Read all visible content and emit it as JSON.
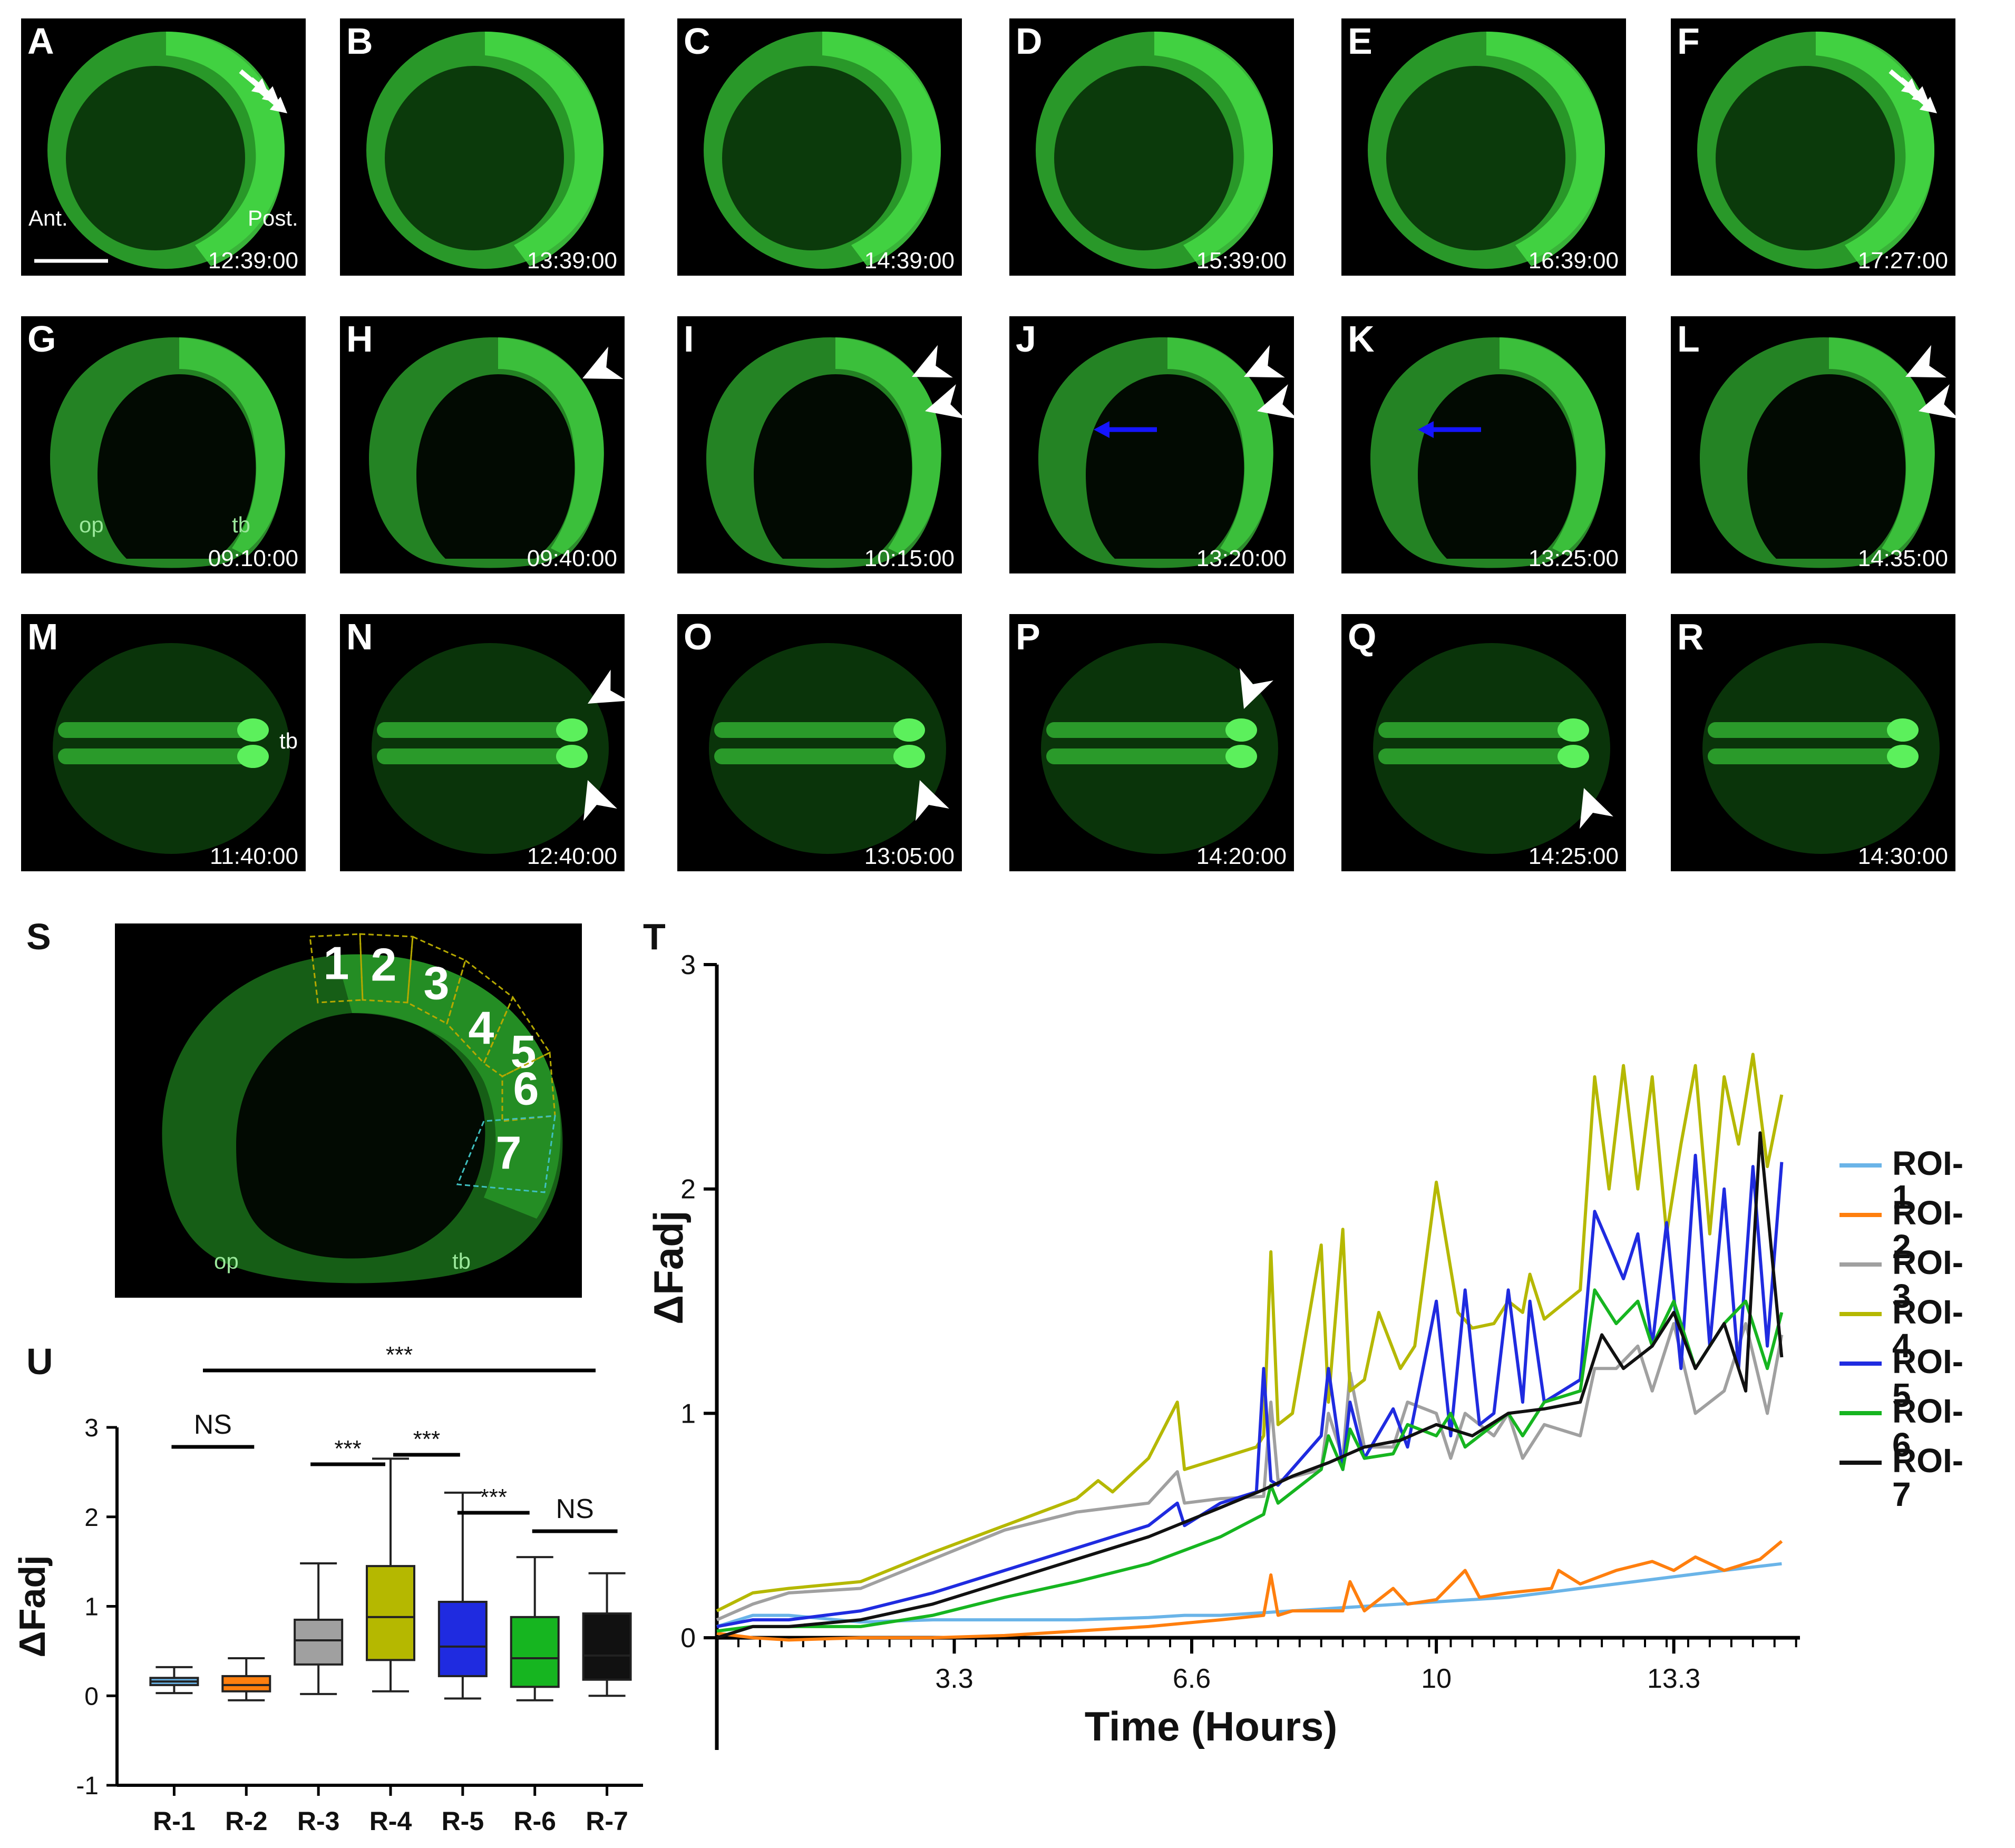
{
  "rows": [
    {
      "panels": [
        {
          "letter": "A",
          "time": "12:39:00",
          "annotations": [
            {
              "text": "Ant.",
              "pos": "bl"
            },
            {
              "text": "Post.",
              "pos": "br"
            }
          ],
          "marks": "white-arrows",
          "scalebar": true,
          "shape": "ring"
        },
        {
          "letter": "B",
          "time": "13:39:00",
          "shape": "ring"
        },
        {
          "letter": "C",
          "time": "14:39:00",
          "shape": "ring"
        },
        {
          "letter": "D",
          "time": "15:39:00",
          "shape": "ring"
        },
        {
          "letter": "E",
          "time": "16:39:00",
          "shape": "ring"
        },
        {
          "letter": "F",
          "time": "17:27:00",
          "marks": "white-arrows",
          "shape": "ring"
        }
      ]
    },
    {
      "panels": [
        {
          "letter": "G",
          "time": "09:10:00",
          "annotations": [
            {
              "text": "op",
              "pos": "bl2"
            },
            {
              "text": "tb",
              "pos": "bc"
            }
          ],
          "shape": "horseshoe"
        },
        {
          "letter": "H",
          "time": "09:40:00",
          "marks": "arrowhead-1",
          "shape": "horseshoe"
        },
        {
          "letter": "I",
          "time": "10:15:00",
          "marks": "arrowhead-2",
          "shape": "horseshoe"
        },
        {
          "letter": "J",
          "time": "13:20:00",
          "marks": "arrowhead-2-blue",
          "shape": "horseshoe"
        },
        {
          "letter": "K",
          "time": "13:25:00",
          "marks": "blue-arrow",
          "shape": "horseshoe"
        },
        {
          "letter": "L",
          "time": "14:35:00",
          "marks": "arrowhead-2",
          "shape": "horseshoe"
        }
      ]
    },
    {
      "panels": [
        {
          "letter": "M",
          "time": "11:40:00",
          "annotations": [
            {
              "text": "tb",
              "pos": "r"
            }
          ],
          "shape": "dorsal"
        },
        {
          "letter": "N",
          "time": "12:40:00",
          "marks": "arrowhead-updown",
          "shape": "dorsal"
        },
        {
          "letter": "O",
          "time": "13:05:00",
          "marks": "arrowhead-up",
          "shape": "dorsal"
        },
        {
          "letter": "P",
          "time": "14:20:00",
          "marks": "arrowhead-down",
          "shape": "dorsal"
        },
        {
          "letter": "Q",
          "time": "14:25:00",
          "marks": "arrowhead-up2",
          "shape": "dorsal"
        },
        {
          "letter": "R",
          "time": "14:30:00",
          "shape": "dorsal"
        }
      ]
    }
  ],
  "panel_s": {
    "letter": "S",
    "labels": [
      "op",
      "tb"
    ],
    "rois": [
      "1",
      "2",
      "3",
      "4",
      "5",
      "6",
      "7"
    ]
  },
  "chart_data": [
    {
      "type": "line",
      "panel": "T",
      "xlabel": "Time (Hours)",
      "ylabel": "ΔFadj",
      "ylim": [
        -0.5,
        3
      ],
      "xlim": [
        0,
        15.2
      ],
      "xticks": [
        3.3,
        6.6,
        10,
        13.3
      ],
      "xtick_labels": [
        "3.3",
        "6.6",
        "10",
        "13.3"
      ],
      "yticks": [
        0,
        1,
        2,
        3
      ],
      "legend_position": "right",
      "series": [
        {
          "name": "ROI-1",
          "color": "#6ab4e8",
          "x": [
            0,
            0.5,
            1,
            2,
            3,
            4,
            5,
            6,
            6.5,
            7,
            8,
            9,
            10,
            11,
            12,
            13,
            14,
            14.8
          ],
          "y": [
            0.05,
            0.1,
            0.1,
            0.07,
            0.08,
            0.08,
            0.08,
            0.09,
            0.1,
            0.1,
            0.12,
            0.14,
            0.16,
            0.18,
            0.22,
            0.26,
            0.3,
            0.33
          ]
        },
        {
          "name": "ROI-2",
          "color": "#ff7f0e",
          "x": [
            0,
            0.5,
            1,
            2,
            3,
            4,
            5,
            6,
            7,
            7.6,
            7.7,
            7.8,
            8,
            8.7,
            8.8,
            9,
            9.4,
            9.6,
            10,
            10.4,
            10.6,
            11,
            11.6,
            11.7,
            12,
            12.5,
            13,
            13.3,
            13.6,
            14,
            14.5,
            14.8
          ],
          "y": [
            0.02,
            0.0,
            -0.01,
            0.0,
            0.0,
            0.01,
            0.03,
            0.05,
            0.08,
            0.1,
            0.28,
            0.1,
            0.12,
            0.12,
            0.25,
            0.12,
            0.22,
            0.15,
            0.17,
            0.3,
            0.18,
            0.2,
            0.22,
            0.3,
            0.24,
            0.3,
            0.34,
            0.3,
            0.36,
            0.3,
            0.35,
            0.43
          ]
        },
        {
          "name": "ROI-3",
          "color": "#a0a0a0",
          "x": [
            0,
            0.5,
            1,
            2,
            3,
            4,
            5,
            6,
            6.4,
            6.5,
            7,
            7.6,
            7.7,
            7.8,
            8.4,
            8.5,
            8.7,
            8.8,
            9,
            9.4,
            9.6,
            10,
            10.2,
            10.4,
            10.8,
            11,
            11.2,
            11.5,
            12,
            12.2,
            12.5,
            12.8,
            13,
            13.3,
            13.6,
            14,
            14.3,
            14.6,
            14.8
          ],
          "y": [
            0.08,
            0.15,
            0.2,
            0.22,
            0.35,
            0.48,
            0.56,
            0.6,
            0.74,
            0.6,
            0.62,
            0.63,
            1.05,
            0.7,
            0.75,
            1.0,
            0.8,
            1.18,
            0.85,
            0.85,
            1.05,
            1.0,
            0.8,
            1.0,
            0.9,
            1.0,
            0.8,
            0.95,
            0.9,
            1.2,
            1.2,
            1.3,
            1.1,
            1.4,
            1.0,
            1.1,
            1.4,
            1.0,
            1.35
          ]
        },
        {
          "name": "ROI-4",
          "color": "#b5b800",
          "x": [
            0,
            0.5,
            1,
            2,
            3,
            4,
            5,
            5.3,
            5.5,
            6,
            6.4,
            6.5,
            7,
            7.5,
            7.6,
            7.7,
            7.8,
            8,
            8.4,
            8.5,
            8.7,
            8.8,
            9,
            9.2,
            9.5,
            9.7,
            10,
            10.3,
            10.5,
            10.8,
            11,
            11.2,
            11.3,
            11.5,
            12,
            12.2,
            12.4,
            12.6,
            12.8,
            13,
            13.2,
            13.4,
            13.6,
            13.8,
            14,
            14.2,
            14.4,
            14.6,
            14.8
          ],
          "y": [
            0.12,
            0.2,
            0.22,
            0.25,
            0.38,
            0.5,
            0.62,
            0.7,
            0.65,
            0.8,
            1.05,
            0.75,
            0.8,
            0.85,
            0.9,
            1.72,
            0.95,
            1.0,
            1.75,
            1.05,
            1.82,
            1.1,
            1.15,
            1.45,
            1.2,
            1.3,
            2.03,
            1.45,
            1.38,
            1.4,
            1.5,
            1.45,
            1.62,
            1.42,
            1.55,
            2.5,
            2.0,
            2.55,
            2.0,
            2.5,
            1.8,
            2.2,
            2.55,
            1.8,
            2.5,
            2.2,
            2.6,
            2.1,
            2.42
          ]
        },
        {
          "name": "ROI-5",
          "color": "#1f2be0",
          "x": [
            0,
            0.5,
            1,
            2,
            3,
            4,
            5,
            6,
            6.4,
            6.5,
            7,
            7.5,
            7.6,
            7.7,
            7.8,
            8.4,
            8.5,
            8.7,
            8.8,
            9,
            9.4,
            9.6,
            10,
            10.2,
            10.4,
            10.6,
            10.8,
            11,
            11.2,
            11.3,
            11.5,
            12,
            12.2,
            12.4,
            12.6,
            12.8,
            13,
            13.2,
            13.4,
            13.6,
            13.8,
            14,
            14.2,
            14.4,
            14.6,
            14.8
          ],
          "y": [
            0.05,
            0.08,
            0.08,
            0.12,
            0.2,
            0.3,
            0.4,
            0.5,
            0.6,
            0.5,
            0.6,
            0.65,
            1.2,
            0.7,
            0.68,
            0.9,
            1.2,
            0.75,
            1.05,
            0.8,
            1.02,
            0.85,
            1.5,
            0.9,
            1.55,
            0.95,
            1.0,
            1.55,
            1.05,
            1.5,
            1.05,
            1.15,
            1.9,
            1.75,
            1.6,
            1.8,
            1.3,
            1.85,
            1.2,
            2.15,
            1.3,
            2.0,
            1.2,
            2.1,
            1.3,
            2.12
          ]
        },
        {
          "name": "ROI-6",
          "color": "#16b520",
          "x": [
            0,
            0.5,
            1,
            2,
            3,
            4,
            5,
            6,
            7,
            7.6,
            7.7,
            7.8,
            8.4,
            8.5,
            8.7,
            8.8,
            9,
            9.4,
            9.6,
            10,
            10.2,
            10.4,
            10.6,
            11,
            11.2,
            11.5,
            12,
            12.2,
            12.5,
            12.8,
            13,
            13.3,
            13.6,
            14,
            14.3,
            14.6,
            14.8
          ],
          "y": [
            0.03,
            0.05,
            0.05,
            0.05,
            0.1,
            0.18,
            0.25,
            0.33,
            0.45,
            0.55,
            0.68,
            0.6,
            0.75,
            0.9,
            0.75,
            0.93,
            0.8,
            0.82,
            0.95,
            0.9,
            1.0,
            0.85,
            0.9,
            1.0,
            0.9,
            1.05,
            1.1,
            1.55,
            1.4,
            1.5,
            1.3,
            1.5,
            1.2,
            1.4,
            1.5,
            1.2,
            1.45
          ]
        },
        {
          "name": "ROI-7",
          "color": "#111111",
          "x": [
            0,
            0.5,
            1,
            2,
            3,
            4,
            5,
            6,
            7,
            7.6,
            8,
            8.5,
            9,
            9.5,
            10,
            10.5,
            11,
            11.5,
            12,
            12.3,
            12.6,
            13,
            13.3,
            13.6,
            14,
            14.3,
            14.5,
            14.8
          ],
          "y": [
            0.0,
            0.05,
            0.05,
            0.08,
            0.15,
            0.25,
            0.35,
            0.45,
            0.58,
            0.66,
            0.72,
            0.78,
            0.85,
            0.88,
            0.95,
            0.9,
            1.0,
            1.02,
            1.05,
            1.35,
            1.2,
            1.3,
            1.45,
            1.2,
            1.4,
            1.1,
            2.25,
            1.25
          ]
        }
      ]
    },
    {
      "type": "box",
      "panel": "U",
      "ylabel": "ΔFadj",
      "ylim": [
        -1,
        3
      ],
      "yticks": [
        -1,
        0,
        1,
        2,
        3
      ],
      "categories": [
        "R-1",
        "R-2",
        "R-3",
        "R-4",
        "R-5",
        "R-6",
        "R-7"
      ],
      "colors": [
        "#6ab4e8",
        "#ff7f0e",
        "#a0a0a0",
        "#b5b800",
        "#1f2be0",
        "#16b520",
        "#111111"
      ],
      "boxes": [
        {
          "min": 0.03,
          "q1": 0.12,
          "median": 0.16,
          "q3": 0.2,
          "max": 0.32
        },
        {
          "min": -0.05,
          "q1": 0.05,
          "median": 0.12,
          "q3": 0.22,
          "max": 0.42
        },
        {
          "min": 0.02,
          "q1": 0.35,
          "median": 0.62,
          "q3": 0.85,
          "max": 1.48
        },
        {
          "min": 0.05,
          "q1": 0.4,
          "median": 0.88,
          "q3": 1.45,
          "max": 2.65
        },
        {
          "min": -0.03,
          "q1": 0.22,
          "median": 0.55,
          "q3": 1.05,
          "max": 2.27
        },
        {
          "min": -0.05,
          "q1": 0.1,
          "median": 0.42,
          "q3": 0.88,
          "max": 1.55
        },
        {
          "min": 0.0,
          "q1": 0.18,
          "median": 0.45,
          "q3": 0.92,
          "max": 1.37
        }
      ],
      "significance": [
        {
          "label": "***",
          "from": 1,
          "to": 6
        },
        {
          "label": "***",
          "from": 2,
          "to": 3
        },
        {
          "label": "***",
          "from": 3,
          "to": 4
        },
        {
          "label": "***",
          "from": 4,
          "to": 5
        },
        {
          "label": "NS",
          "from": 5,
          "to": 6
        },
        {
          "label": "NS",
          "from": 0,
          "to": 1
        }
      ]
    }
  ]
}
